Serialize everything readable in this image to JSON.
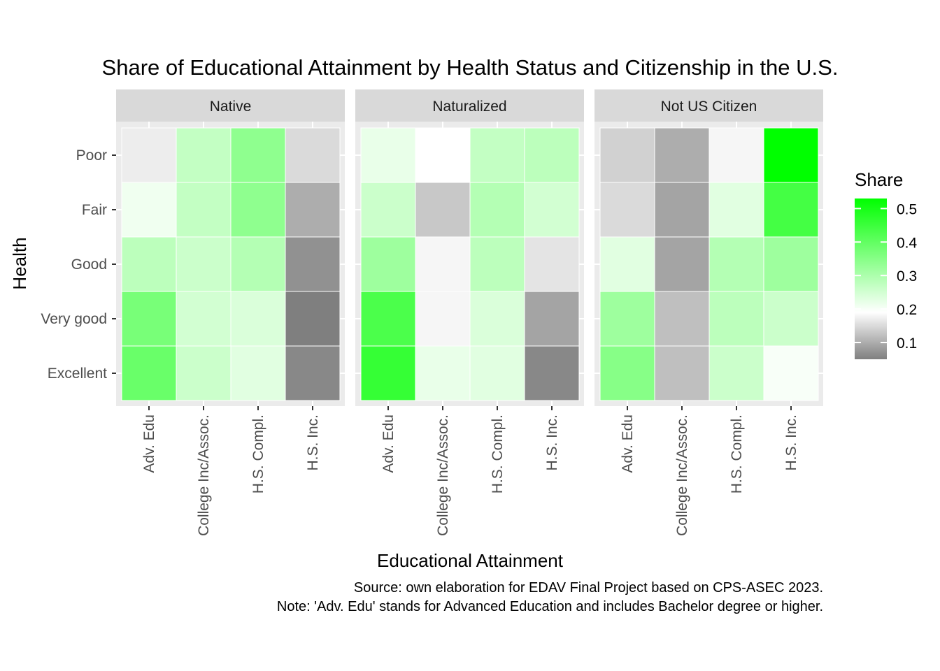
{
  "chart_data": {
    "type": "heatmap",
    "title": "Share of Educational Attainment by Health Status and Citizenship in the U.S.",
    "xlabel": "Educational Attainment",
    "ylabel": "Health",
    "x_categories": [
      "Adv. Edu",
      "College Inc/Assoc.",
      "H.S. Compl.",
      "H.S. Inc."
    ],
    "y_categories": [
      "Excellent",
      "Very good",
      "Good",
      "Fair",
      "Poor"
    ],
    "panels": [
      {
        "name": "Native",
        "values": {
          "Poor": [
            0.17,
            0.27,
            0.34,
            0.15
          ],
          "Fair": [
            0.21,
            0.27,
            0.34,
            0.1
          ],
          "Good": [
            0.28,
            0.26,
            0.29,
            0.07
          ],
          "Very good": [
            0.37,
            0.25,
            0.24,
            0.05
          ],
          "Excellent": [
            0.39,
            0.26,
            0.23,
            0.06
          ]
        }
      },
      {
        "name": "Naturalized",
        "values": {
          "Poor": [
            0.22,
            0.19,
            0.27,
            0.28
          ],
          "Fair": [
            0.26,
            0.13,
            0.29,
            0.25
          ],
          "Good": [
            0.32,
            0.18,
            0.28,
            0.16
          ],
          "Very good": [
            0.43,
            0.18,
            0.24,
            0.09
          ],
          "Excellent": [
            0.46,
            0.22,
            0.23,
            0.06
          ]
        }
      },
      {
        "name": "Not US Citizen",
        "values": {
          "Poor": [
            0.14,
            0.1,
            0.18,
            0.53
          ],
          "Fair": [
            0.15,
            0.09,
            0.23,
            0.44
          ],
          "Good": [
            0.23,
            0.09,
            0.29,
            0.32
          ],
          "Very good": [
            0.32,
            0.12,
            0.28,
            0.26
          ],
          "Excellent": [
            0.35,
            0.12,
            0.26,
            0.2
          ]
        }
      }
    ],
    "legend": {
      "title": "Share",
      "position": "right",
      "ticks": [
        0.1,
        0.2,
        0.3,
        0.4,
        0.5
      ],
      "range": [
        0.05,
        0.53
      ],
      "low_color": "#7f7f7f",
      "mid_color": "#ffffff",
      "high_color": "#00ff00",
      "midpoint": 0.19
    },
    "caption": [
      "Source: own elaboration for EDAV Final Project based on CPS-ASEC 2023.",
      "Note: 'Adv. Edu' stands for Advanced Education and includes Bachelor degree or higher."
    ],
    "grid": true
  }
}
